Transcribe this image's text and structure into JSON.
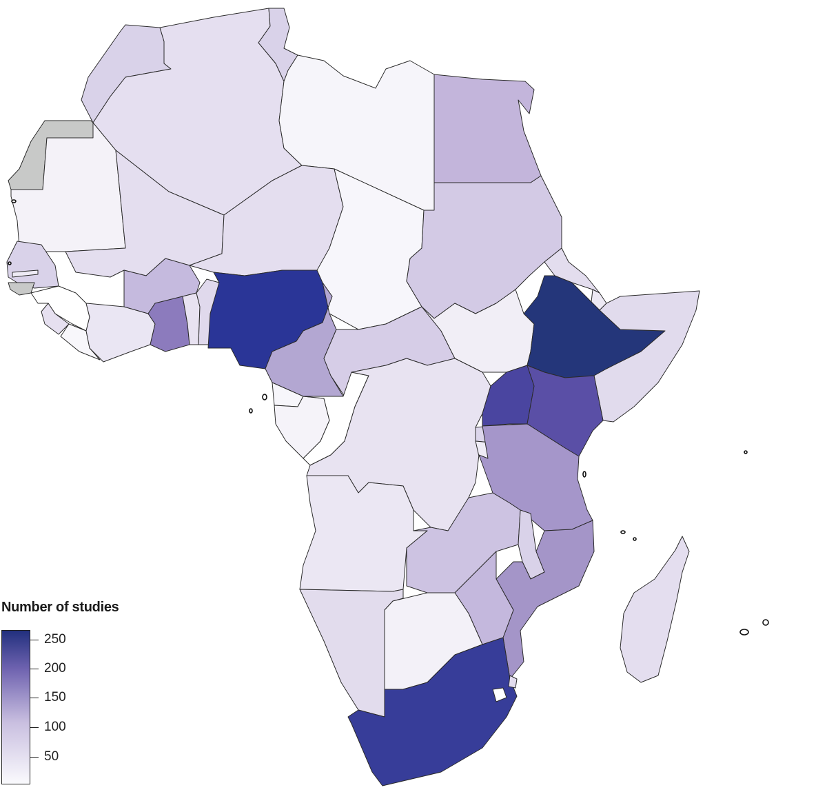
{
  "legend": {
    "title": "Number of studies",
    "ticks": [
      "250",
      "200",
      "150",
      "100",
      "50"
    ]
  },
  "colors": {
    "background": "#ffffff",
    "no_data": "#c8c9c8",
    "scale_low": "#fafafd",
    "scale_high": "#22307e",
    "border": "#2b2b2b"
  },
  "countries": [
    {
      "name": "Morocco",
      "color": "#d9d2e9"
    },
    {
      "name": "Western Sahara",
      "color": "#c8c9c8"
    },
    {
      "name": "Algeria",
      "color": "#e5dff0"
    },
    {
      "name": "Tunisia",
      "color": "#d9d2e9"
    },
    {
      "name": "Libya",
      "color": "#f6f5fa"
    },
    {
      "name": "Egypt",
      "color": "#c3b5db"
    },
    {
      "name": "Mauritania",
      "color": "#f4f2f8"
    },
    {
      "name": "Mali",
      "color": "#e4deef"
    },
    {
      "name": "Niger",
      "color": "#e4deef"
    },
    {
      "name": "Chad",
      "color": "#f7f6fb"
    },
    {
      "name": "Sudan",
      "color": "#d3cae5"
    },
    {
      "name": "Senegal",
      "color": "#d9d2e9"
    },
    {
      "name": "Gambia",
      "color": "#eeebf5"
    },
    {
      "name": "Guinea-Bissau",
      "color": "#c8c9c8"
    },
    {
      "name": "Guinea",
      "color": "#ffffff"
    },
    {
      "name": "Sierra Leone",
      "color": "#e6e0f0"
    },
    {
      "name": "Liberia",
      "color": "#f8f7fb"
    },
    {
      "name": "Cote d'Ivoire",
      "color": "#eae6f3"
    },
    {
      "name": "Burkina Faso",
      "color": "#c5bade"
    },
    {
      "name": "Ghana",
      "color": "#8c7bbd"
    },
    {
      "name": "Togo",
      "color": "#e8e2f1"
    },
    {
      "name": "Benin",
      "color": "#e0d9ec"
    },
    {
      "name": "Nigeria",
      "color": "#2a3597"
    },
    {
      "name": "Cameroon",
      "color": "#b3a7d2"
    },
    {
      "name": "Central African Republic",
      "color": "#d6cde7"
    },
    {
      "name": "South Sudan",
      "color": "#f1eef6"
    },
    {
      "name": "Eritrea",
      "color": "#e3ddee"
    },
    {
      "name": "Djibouti",
      "color": "#ede9f4"
    },
    {
      "name": "Ethiopia",
      "color": "#24367a"
    },
    {
      "name": "Somalia",
      "color": "#e1dbed"
    },
    {
      "name": "Equatorial Guinea",
      "color": "#f7f6fb"
    },
    {
      "name": "Gabon",
      "color": "#f5f3f9"
    },
    {
      "name": "Congo",
      "color": "#ffffff"
    },
    {
      "name": "DR Congo",
      "color": "#e8e3f1"
    },
    {
      "name": "Uganda",
      "color": "#4a45a0"
    },
    {
      "name": "Kenya",
      "color": "#5a4fa6"
    },
    {
      "name": "Rwanda",
      "color": "#dcd6eb"
    },
    {
      "name": "Burundi",
      "color": "#efecf6"
    },
    {
      "name": "Tanzania",
      "color": "#a596ca"
    },
    {
      "name": "Angola",
      "color": "#ebe7f3"
    },
    {
      "name": "Zambia",
      "color": "#cdc3e2"
    },
    {
      "name": "Malawi",
      "color": "#d9d2e9"
    },
    {
      "name": "Mozambique",
      "color": "#a495c8"
    },
    {
      "name": "Zimbabwe",
      "color": "#c4b8dd"
    },
    {
      "name": "Namibia",
      "color": "#e2dced"
    },
    {
      "name": "Botswana",
      "color": "#f3f1f8"
    },
    {
      "name": "South Africa",
      "color": "#373d99"
    },
    {
      "name": "Lesotho",
      "color": "#ffffff"
    },
    {
      "name": "Eswatini",
      "color": "#e3ddef"
    },
    {
      "name": "Madagascar",
      "color": "#e4deef"
    }
  ]
}
